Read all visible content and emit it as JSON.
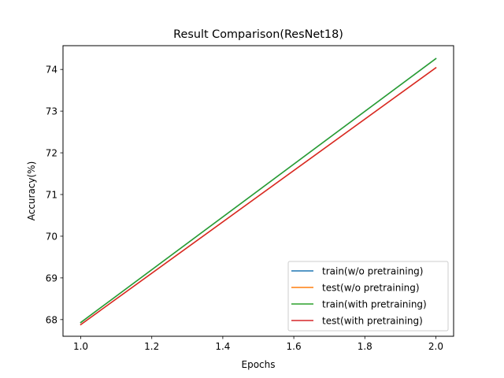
{
  "chart_data": {
    "type": "line",
    "title": "Result Comparison(ResNet18)",
    "xlabel": "Epochs",
    "ylabel": "Accuracy(%)",
    "xlim": [
      0.95,
      2.05
    ],
    "ylim": [
      67.6,
      74.57
    ],
    "xticks": [
      1.0,
      1.2,
      1.4,
      1.6,
      1.8,
      2.0
    ],
    "xtick_labels": [
      "1.0",
      "1.2",
      "1.4",
      "1.6",
      "1.8",
      "2.0"
    ],
    "yticks": [
      68,
      69,
      70,
      71,
      72,
      73,
      74
    ],
    "ytick_labels": [
      "68",
      "69",
      "70",
      "71",
      "72",
      "73",
      "74"
    ],
    "grid": false,
    "legend_position": "lower-right",
    "x": [
      1,
      2
    ],
    "series": [
      {
        "name": "train(w/o pretraining)",
        "color": "#1f77b4",
        "values": [
          67.93,
          74.26
        ]
      },
      {
        "name": "test(w/o pretraining)",
        "color": "#ff7f0e",
        "values": [
          67.88,
          74.04
        ]
      },
      {
        "name": "train(with pretraining)",
        "color": "#2ca02c",
        "values": [
          67.93,
          74.26
        ]
      },
      {
        "name": "test(with pretraining)",
        "color": "#d62728",
        "values": [
          67.88,
          74.04
        ]
      }
    ]
  }
}
